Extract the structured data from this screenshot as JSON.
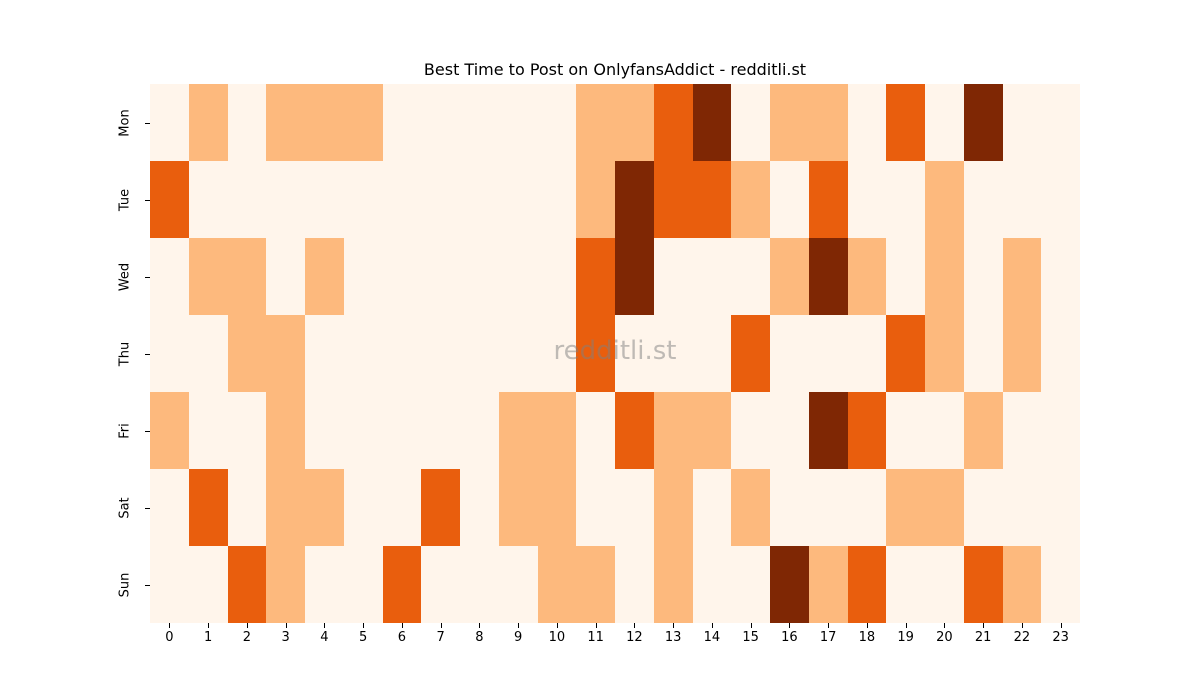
{
  "chart_data": {
    "type": "heatmap",
    "title": "Best Time to Post on OnlyfansAddict - redditli.st",
    "xlabel": "",
    "ylabel": "",
    "x": [
      "0",
      "1",
      "2",
      "3",
      "4",
      "5",
      "6",
      "7",
      "8",
      "9",
      "10",
      "11",
      "12",
      "13",
      "14",
      "15",
      "16",
      "17",
      "18",
      "19",
      "20",
      "21",
      "22",
      "23"
    ],
    "y": [
      "Mon",
      "Tue",
      "Wed",
      "Thu",
      "Fri",
      "Sat",
      "Sun"
    ],
    "colormap": "Oranges",
    "levels": {
      "0": "#fff5eb",
      "1": "#fdb97d",
      "2": "#e95e0d",
      "3": "#7f2704"
    },
    "values": [
      [
        0,
        1,
        0,
        1,
        1,
        1,
        0,
        0,
        0,
        0,
        0,
        1,
        1,
        2,
        3,
        0,
        1,
        1,
        0,
        2,
        0,
        3,
        0,
        0
      ],
      [
        2,
        0,
        0,
        0,
        0,
        0,
        0,
        0,
        0,
        0,
        0,
        1,
        3,
        2,
        2,
        1,
        0,
        2,
        0,
        0,
        1,
        0,
        0,
        0
      ],
      [
        0,
        1,
        1,
        0,
        1,
        0,
        0,
        0,
        0,
        0,
        0,
        2,
        3,
        0,
        0,
        0,
        1,
        3,
        1,
        0,
        1,
        0,
        1,
        0
      ],
      [
        0,
        0,
        1,
        1,
        0,
        0,
        0,
        0,
        0,
        0,
        0,
        2,
        0,
        0,
        0,
        2,
        0,
        0,
        0,
        2,
        1,
        0,
        1,
        0
      ],
      [
        1,
        0,
        0,
        1,
        0,
        0,
        0,
        0,
        0,
        1,
        1,
        0,
        2,
        1,
        1,
        0,
        0,
        3,
        2,
        0,
        0,
        1,
        0,
        0
      ],
      [
        0,
        2,
        0,
        1,
        1,
        0,
        0,
        2,
        0,
        1,
        1,
        0,
        0,
        1,
        0,
        1,
        0,
        0,
        0,
        1,
        1,
        0,
        0,
        0
      ],
      [
        0,
        0,
        2,
        1,
        0,
        0,
        2,
        0,
        0,
        0,
        1,
        1,
        0,
        1,
        0,
        0,
        3,
        1,
        2,
        0,
        0,
        2,
        1,
        0
      ]
    ],
    "grid": false,
    "legend": "none"
  },
  "watermark": "redditli.st"
}
